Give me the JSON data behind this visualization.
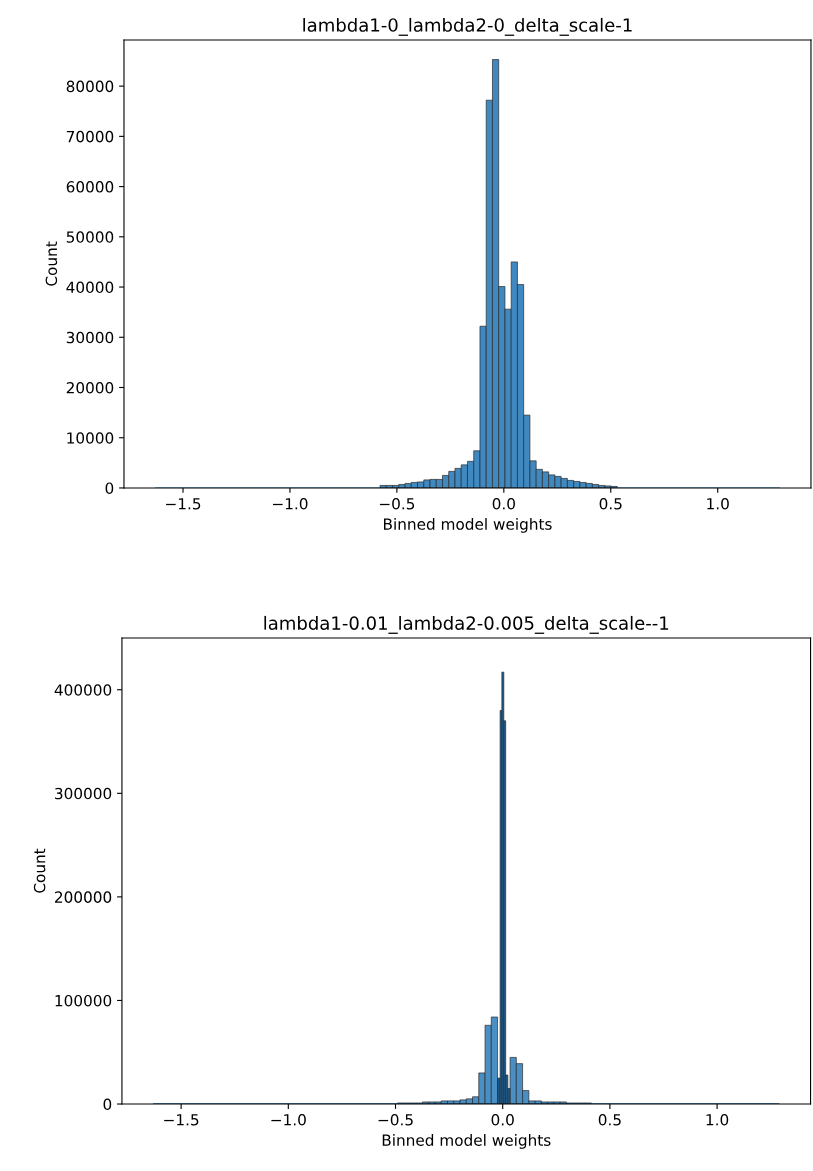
{
  "chart_data": [
    {
      "type": "histogram",
      "title": "lambda1-0_lambda2-0_delta_scale-1",
      "xlabel": "Binned model weights",
      "ylabel": "Count",
      "bins": [
        -1.63,
        -1.6008,
        -1.5716,
        -1.5424,
        -1.5132,
        -1.484,
        -1.4548,
        -1.4256,
        -1.3964,
        -1.3672,
        -1.338,
        -1.3088,
        -1.2796,
        -1.2504,
        -1.2212,
        -1.192,
        -1.1628,
        -1.1336,
        -1.1044,
        -1.0752,
        -1.046,
        -1.0168,
        -0.9876,
        -0.9584,
        -0.9292,
        -0.9,
        -0.8708,
        -0.8416,
        -0.8124,
        -0.7832,
        -0.754,
        -0.7248,
        -0.6956,
        -0.6664,
        -0.6372,
        -0.608,
        -0.5788,
        -0.5496,
        -0.5204,
        -0.4912,
        -0.462,
        -0.4328,
        -0.4036,
        -0.3744,
        -0.3452,
        -0.316,
        -0.2868,
        -0.2576,
        -0.2284,
        -0.1992,
        -0.17,
        -0.1408,
        -0.1116,
        -0.0824,
        -0.0532,
        -0.024,
        0.0052,
        0.0344,
        0.0636,
        0.0928,
        0.122,
        0.1512,
        0.1804,
        0.2096,
        0.2388,
        0.268,
        0.2972,
        0.3264,
        0.3556,
        0.3848,
        0.414,
        0.4432,
        0.4724,
        0.5016,
        0.5308,
        0.56,
        0.5892,
        0.6184,
        0.6476,
        0.6768,
        0.706,
        0.7352,
        0.7644,
        0.7936,
        0.8228,
        0.852,
        0.8812,
        0.9104,
        0.9396,
        0.9688,
        0.998,
        1.0272,
        1.0564,
        1.0856,
        1.1148,
        1.144,
        1.1732,
        1.2024,
        1.2316,
        1.2608,
        1.29
      ],
      "values": [
        0,
        0,
        0,
        0,
        0,
        0,
        0,
        0,
        0,
        0,
        0,
        0,
        0,
        0,
        0,
        0,
        0,
        0,
        0,
        0,
        0,
        0,
        0,
        0,
        0,
        0,
        0,
        0,
        0,
        0,
        0,
        0,
        0,
        0,
        0,
        0,
        500,
        500,
        500,
        700,
        900,
        1100,
        1200,
        1600,
        1700,
        1700,
        2500,
        3300,
        3900,
        4600,
        5300,
        7400,
        32200,
        77200,
        85300,
        40100,
        35600,
        45000,
        40500,
        14500,
        5400,
        3700,
        3200,
        2600,
        2300,
        1900,
        1500,
        1300,
        1100,
        900,
        700,
        500,
        400,
        300,
        0,
        0,
        0,
        0,
        0,
        0,
        0,
        0,
        0,
        0,
        0,
        0,
        0,
        0,
        0,
        0,
        0,
        0,
        0,
        0,
        0,
        0,
        0,
        0,
        0,
        0
      ],
      "color": "#3f88c0",
      "xlim": [
        -1.776,
        1.436
      ],
      "ylim": [
        0,
        89200
      ],
      "xticks": [
        {
          "value": -1.5,
          "label": "−1.5"
        },
        {
          "value": -1.0,
          "label": "−1.0"
        },
        {
          "value": -0.5,
          "label": "−0.5"
        },
        {
          "value": 0.0,
          "label": "0.0"
        },
        {
          "value": 0.5,
          "label": "0.5"
        },
        {
          "value": 1.0,
          "label": "1.0"
        }
      ],
      "yticks": [
        0,
        10000,
        20000,
        30000,
        40000,
        50000,
        60000,
        70000,
        80000
      ]
    },
    {
      "type": "histogram",
      "title": "lambda1-0.01_lambda2-0.005_delta_scale--1",
      "xlabel": "Binned model weights",
      "ylabel": "Count",
      "bins": [
        -1.63,
        -1.6008,
        -1.5716,
        -1.5424,
        -1.5132,
        -1.484,
        -1.4548,
        -1.4256,
        -1.3964,
        -1.3672,
        -1.338,
        -1.3088,
        -1.2796,
        -1.2504,
        -1.2212,
        -1.192,
        -1.1628,
        -1.1336,
        -1.1044,
        -1.0752,
        -1.046,
        -1.0168,
        -0.9876,
        -0.9584,
        -0.9292,
        -0.9,
        -0.8708,
        -0.8416,
        -0.8124,
        -0.7832,
        -0.754,
        -0.7248,
        -0.6956,
        -0.6664,
        -0.6372,
        -0.608,
        -0.5788,
        -0.5496,
        -0.5204,
        -0.4912,
        -0.462,
        -0.4328,
        -0.4036,
        -0.3744,
        -0.3452,
        -0.316,
        -0.2868,
        -0.2576,
        -0.2284,
        -0.1992,
        -0.17,
        -0.1408,
        -0.1116,
        -0.0824,
        -0.0532,
        -0.024,
        -0.012,
        -0.004,
        0.0052,
        0.014,
        0.024,
        0.0344,
        0.0636,
        0.0928,
        0.122,
        0.1512,
        0.1804,
        0.2096,
        0.2388,
        0.268,
        0.2972,
        0.3264,
        0.3556,
        0.3848,
        0.414,
        0.4432,
        0.4724,
        0.5016,
        0.5308,
        0.56,
        0.5892,
        0.6184,
        0.6476,
        0.6768,
        0.706,
        0.7352,
        0.7644,
        0.7936,
        0.8228,
        0.852,
        0.8812,
        0.9104,
        0.9396,
        0.9688,
        0.998,
        1.0272,
        1.0564,
        1.0856,
        1.1148,
        1.144,
        1.1732,
        1.2024,
        1.2316,
        1.2608,
        1.29
      ],
      "series": [
        {
          "color": "#4a8fc3",
          "values": [
            0,
            0,
            0,
            0,
            0,
            0,
            0,
            0,
            0,
            0,
            0,
            0,
            0,
            0,
            0,
            0,
            0,
            0,
            0,
            0,
            0,
            0,
            0,
            0,
            0,
            0,
            0,
            0,
            0,
            0,
            0,
            0,
            0,
            0,
            0,
            0,
            0,
            0,
            0,
            1000,
            1000,
            1000,
            1000,
            2000,
            2000,
            2000,
            3000,
            3000,
            3000,
            4000,
            5000,
            7000,
            30000,
            76000,
            84000,
            null,
            null,
            null,
            null,
            null,
            null,
            45000,
            39000,
            13000,
            3000,
            3000,
            2000,
            2000,
            2000,
            2000,
            1000,
            1000,
            1000,
            1000,
            0,
            0,
            0,
            0,
            0,
            0,
            0,
            0,
            0,
            0,
            0,
            0,
            0,
            0,
            0,
            0,
            0,
            0,
            0,
            0,
            0,
            0,
            0,
            0,
            0,
            0,
            0,
            0,
            0,
            0
          ]
        },
        {
          "color": "#1b5c90",
          "values": [
            0,
            0,
            0,
            0,
            0,
            0,
            0,
            0,
            0,
            0,
            0,
            0,
            0,
            0,
            0,
            0,
            0,
            0,
            0,
            0,
            0,
            0,
            0,
            0,
            0,
            0,
            0,
            0,
            0,
            0,
            0,
            0,
            0,
            0,
            0,
            0,
            0,
            0,
            0,
            0,
            0,
            0,
            0,
            0,
            0,
            0,
            0,
            0,
            0,
            0,
            0,
            0,
            0,
            0,
            0,
            25000,
            380000,
            417000,
            370000,
            28000,
            15000,
            0,
            0,
            0,
            0,
            0,
            0,
            0,
            0,
            0,
            0,
            0,
            0,
            0,
            0,
            0,
            0,
            0,
            0,
            0,
            0,
            0,
            0,
            0,
            0,
            0,
            0,
            0,
            0,
            0,
            0,
            0,
            0,
            0,
            0,
            0,
            0,
            0,
            0,
            0,
            0,
            0,
            0,
            0
          ]
        }
      ],
      "xlim": [
        -1.776,
        1.436
      ],
      "ylim": [
        0,
        450000
      ],
      "xticks": [
        {
          "value": -1.5,
          "label": "−1.5"
        },
        {
          "value": -1.0,
          "label": "−1.0"
        },
        {
          "value": -0.5,
          "label": "−0.5"
        },
        {
          "value": 0.0,
          "label": "0.0"
        },
        {
          "value": 0.5,
          "label": "0.5"
        },
        {
          "value": 1.0,
          "label": "1.0"
        }
      ],
      "yticks": [
        0,
        100000,
        200000,
        300000,
        400000
      ]
    }
  ]
}
